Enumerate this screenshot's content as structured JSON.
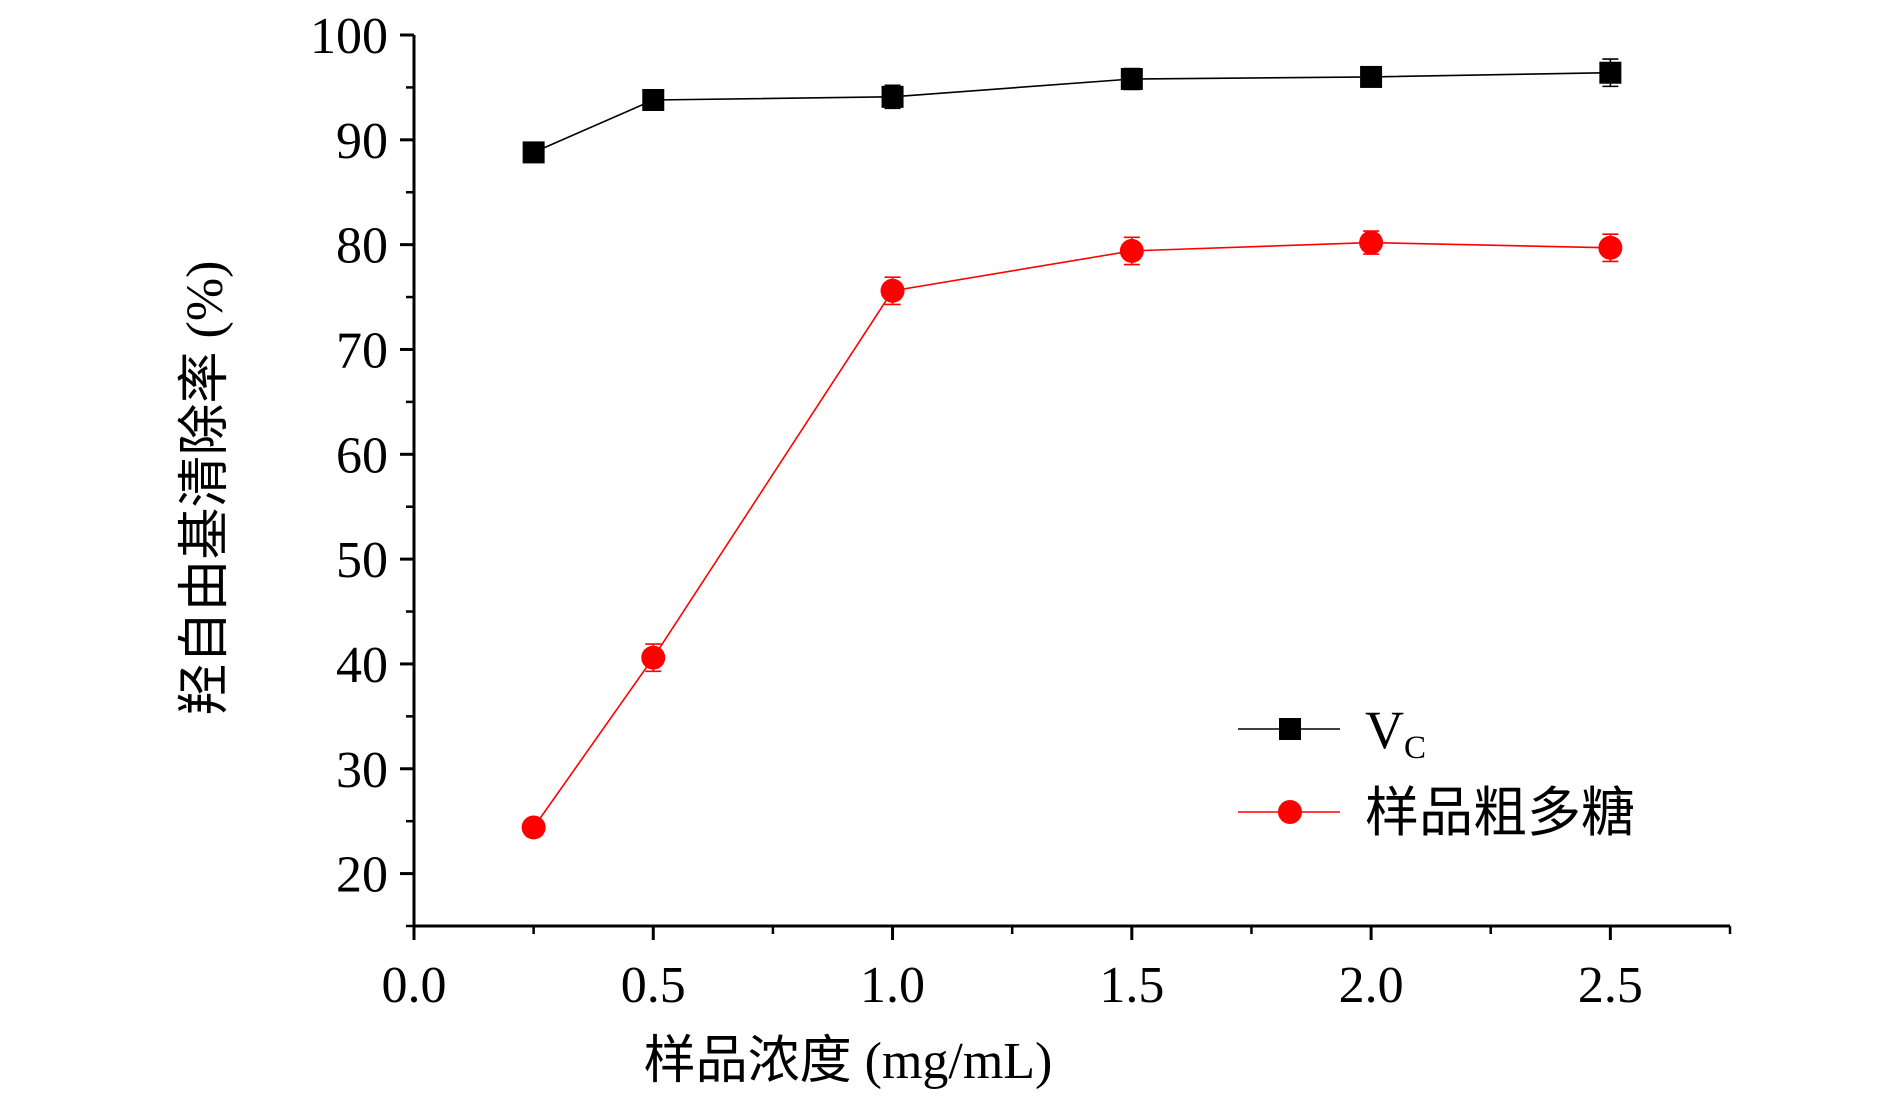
{
  "chart_data": {
    "type": "line",
    "title": "",
    "xlabel": "样品浓度 (mg/mL)",
    "ylabel": "羟自由基清除率 (%)",
    "xlim": [
      0.0,
      2.75
    ],
    "ylim": [
      15,
      100
    ],
    "x_ticks": [
      0.0,
      0.5,
      1.0,
      1.5,
      2.0,
      2.5
    ],
    "x_tick_labels": [
      "0.0",
      "0.5",
      "1.0",
      "1.5",
      "2.0",
      "2.5"
    ],
    "y_ticks": [
      20,
      30,
      40,
      50,
      60,
      70,
      80,
      90,
      100
    ],
    "y_tick_labels": [
      "20",
      "30",
      "40",
      "50",
      "60",
      "70",
      "80",
      "90",
      "100"
    ],
    "grid": false,
    "legend_position": "bottom-right",
    "x": [
      0.25,
      0.5,
      1.0,
      1.5,
      2.0,
      2.5
    ],
    "series": [
      {
        "name": "V",
        "name_subscript": "C",
        "marker": "square",
        "color": "#000000",
        "values": [
          88.8,
          93.8,
          94.1,
          95.8,
          96.0,
          96.4
        ],
        "errors": [
          0.5,
          0.8,
          1.1,
          1.0,
          0.8,
          1.3
        ]
      },
      {
        "name": "样品粗多糖",
        "marker": "circle",
        "color": "#ff0000",
        "values": [
          24.4,
          40.6,
          75.6,
          79.4,
          80.2,
          79.7
        ],
        "errors": [
          0.6,
          1.3,
          1.3,
          1.3,
          1.1,
          1.3
        ]
      }
    ]
  }
}
